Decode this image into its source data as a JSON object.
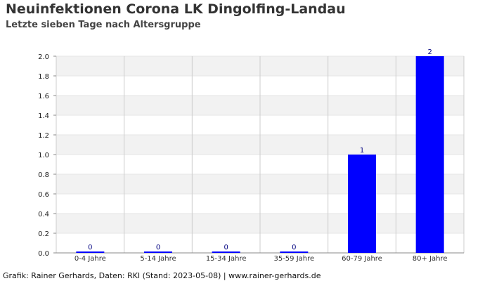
{
  "header": {
    "title": "Neuinfektionen Corona LK Dingolfing-Landau",
    "subtitle": "Letzte sieben Tage nach Altersgruppe"
  },
  "footer": {
    "credits": "Grafik: Rainer Gerhards, Daten: RKI (Stand: 2023-05-08) | www.rainer-gerhards.de"
  },
  "chart_data": {
    "type": "bar",
    "title": "Neuinfektionen Corona LK Dingolfing-Landau",
    "subtitle": "Letzte sieben Tage nach Altersgruppe",
    "xlabel": "",
    "ylabel": "",
    "categories": [
      "0-4 Jahre",
      "5-14 Jahre",
      "15-34 Jahre",
      "35-59 Jahre",
      "60-79 Jahre",
      "80+ Jahre"
    ],
    "values": [
      0,
      0,
      0,
      0,
      1,
      2
    ],
    "ylim": [
      0,
      2
    ],
    "yticks": [
      "0.0",
      "0.2",
      "0.4",
      "0.6",
      "0.8",
      "1.0",
      "1.2",
      "1.4",
      "1.6",
      "1.8",
      "2.0"
    ],
    "data_labels": true,
    "grid": true,
    "legend": "none",
    "colors": {
      "bar": "#0000ff",
      "band": "#f2f2f2",
      "grid": "#cccccc",
      "axis": "#888888",
      "label": "#000080"
    }
  }
}
